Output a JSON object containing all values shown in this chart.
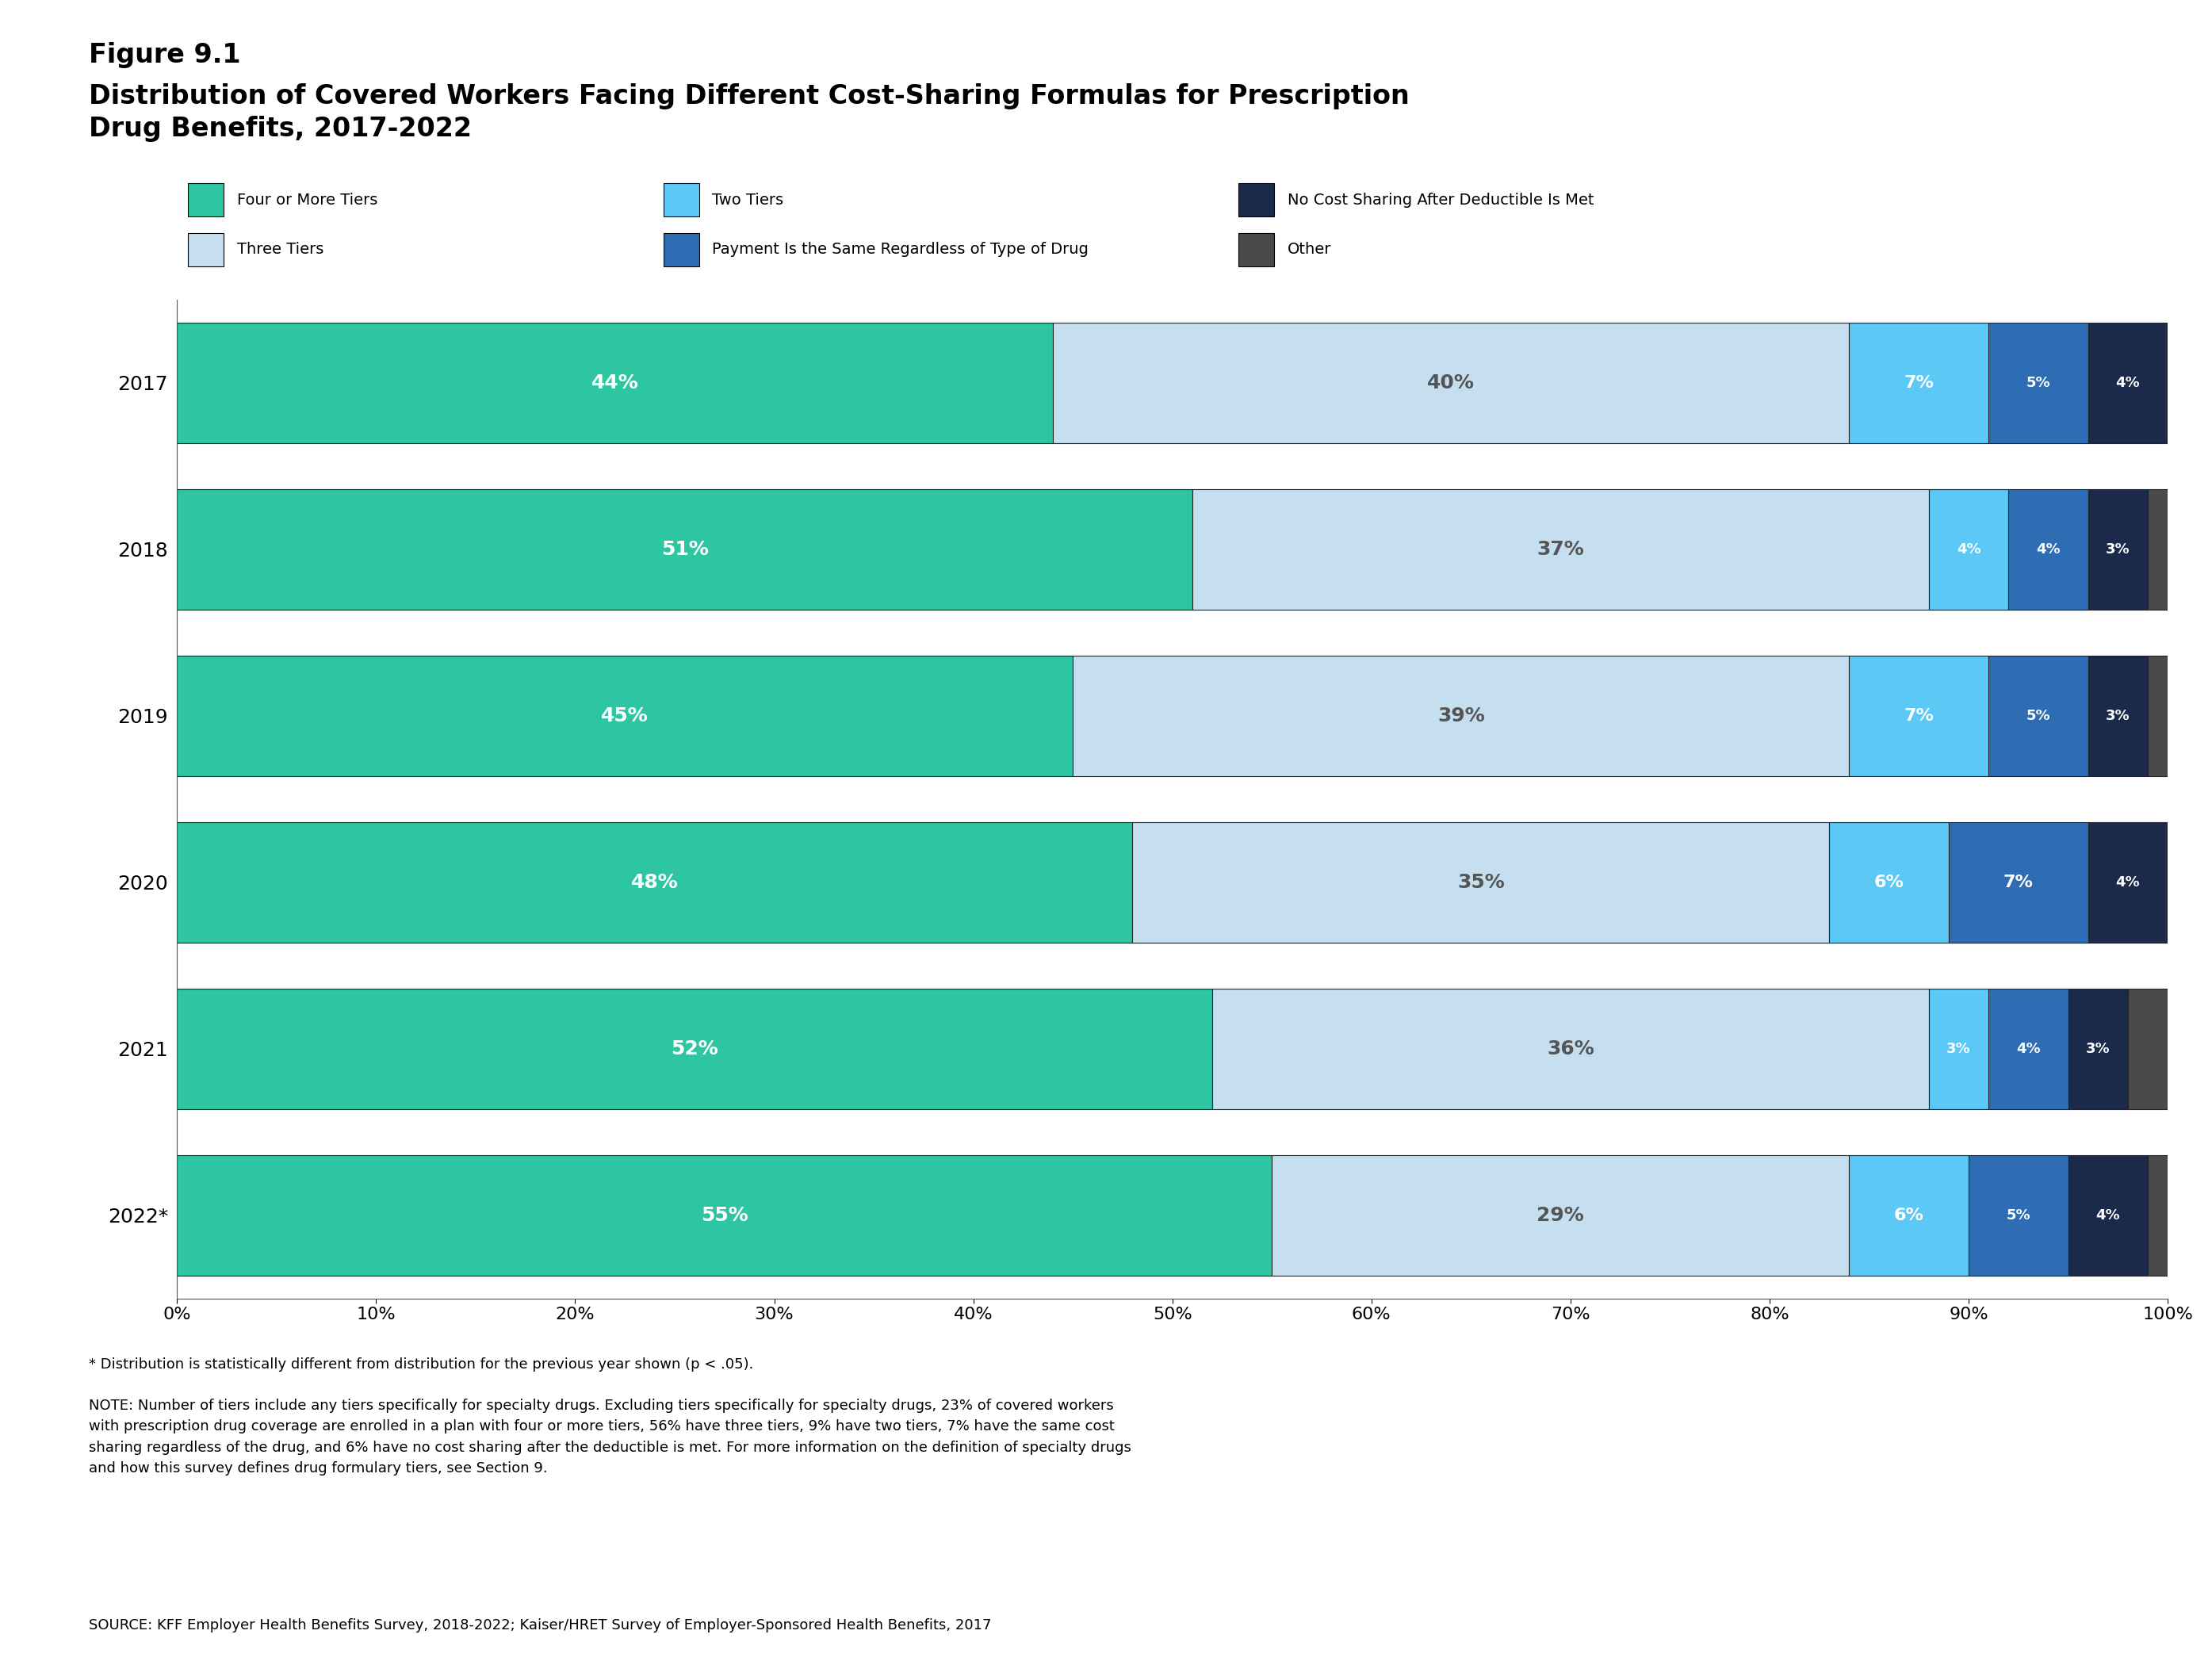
{
  "title_line1": "Figure 9.1",
  "title_line2": "Distribution of Covered Workers Facing Different Cost-Sharing Formulas for Prescription\nDrug Benefits, 2017-2022",
  "years": [
    "2017",
    "2018",
    "2019",
    "2020",
    "2021",
    "2022*"
  ],
  "categories": [
    "Four or More Tiers",
    "Three Tiers",
    "Two Tiers",
    "Payment Is the Same Regardless of Type of Drug",
    "No Cost Sharing After Deductible Is Met",
    "Other"
  ],
  "colors": [
    "#2dc5a2",
    "#c5dff0",
    "#5bc8f5",
    "#2e6db4",
    "#1b2a4a",
    "#4a4a4a"
  ],
  "data": [
    [
      44,
      40,
      7,
      5,
      4,
      0
    ],
    [
      51,
      37,
      4,
      4,
      3,
      1
    ],
    [
      45,
      39,
      7,
      5,
      3,
      1
    ],
    [
      48,
      35,
      6,
      7,
      4,
      0
    ],
    [
      52,
      36,
      3,
      4,
      3,
      2
    ],
    [
      55,
      29,
      6,
      5,
      4,
      1
    ]
  ],
  "labels": [
    [
      "44%",
      "40%",
      "7%",
      "5%",
      "4%",
      ""
    ],
    [
      "51%",
      "37%",
      "4%",
      "4%",
      "3%",
      ""
    ],
    [
      "45%",
      "39%",
      "7%",
      "5%",
      "3%",
      ""
    ],
    [
      "48%",
      "35%",
      "6%",
      "7%",
      "4%",
      ""
    ],
    [
      "52%",
      "36%",
      "3%",
      "4%",
      "3%",
      ""
    ],
    [
      "55%",
      "29%",
      "6%",
      "5%",
      "4%",
      ""
    ]
  ],
  "text_colors": [
    "white",
    "#555555",
    "white",
    "white",
    "white",
    "white"
  ],
  "note_star": "* Distribution is statistically different from distribution for the previous year shown (p < .05).",
  "note_main": "NOTE: Number of tiers include any tiers specifically for specialty drugs. Excluding tiers specifically for specialty drugs, 23% of covered workers\nwith prescription drug coverage are enrolled in a plan with four or more tiers, 56% have three tiers, 9% have two tiers, 7% have the same cost\nsharing regardless of the drug, and 6% have no cost sharing after the deductible is met. For more information on the definition of specialty drugs\nand how this survey defines drug formulary tiers, see Section 9.",
  "source": "SOURCE: KFF Employer Health Benefits Survey, 2018-2022; Kaiser/HRET Survey of Employer-Sponsored Health Benefits, 2017",
  "xticks": [
    "0%",
    "10%",
    "20%",
    "30%",
    "40%",
    "50%",
    "60%",
    "70%",
    "80%",
    "90%",
    "100%"
  ],
  "xtick_vals": [
    0,
    10,
    20,
    30,
    40,
    50,
    60,
    70,
    80,
    90,
    100
  ],
  "bg_color": "#ffffff",
  "bar_edge_color": "#222222",
  "legend_row1": [
    "Four or More Tiers",
    "Two Tiers",
    "No Cost Sharing After Deductible Is Met"
  ],
  "legend_row2": [
    "Three Tiers",
    "Payment Is the Same Regardless of Type of Drug",
    "Other"
  ],
  "legend_row1_colors": [
    "#2dc5a2",
    "#5bc8f5",
    "#1b2a4a"
  ],
  "legend_row2_colors": [
    "#c5dff0",
    "#2e6db4",
    "#4a4a4a"
  ]
}
